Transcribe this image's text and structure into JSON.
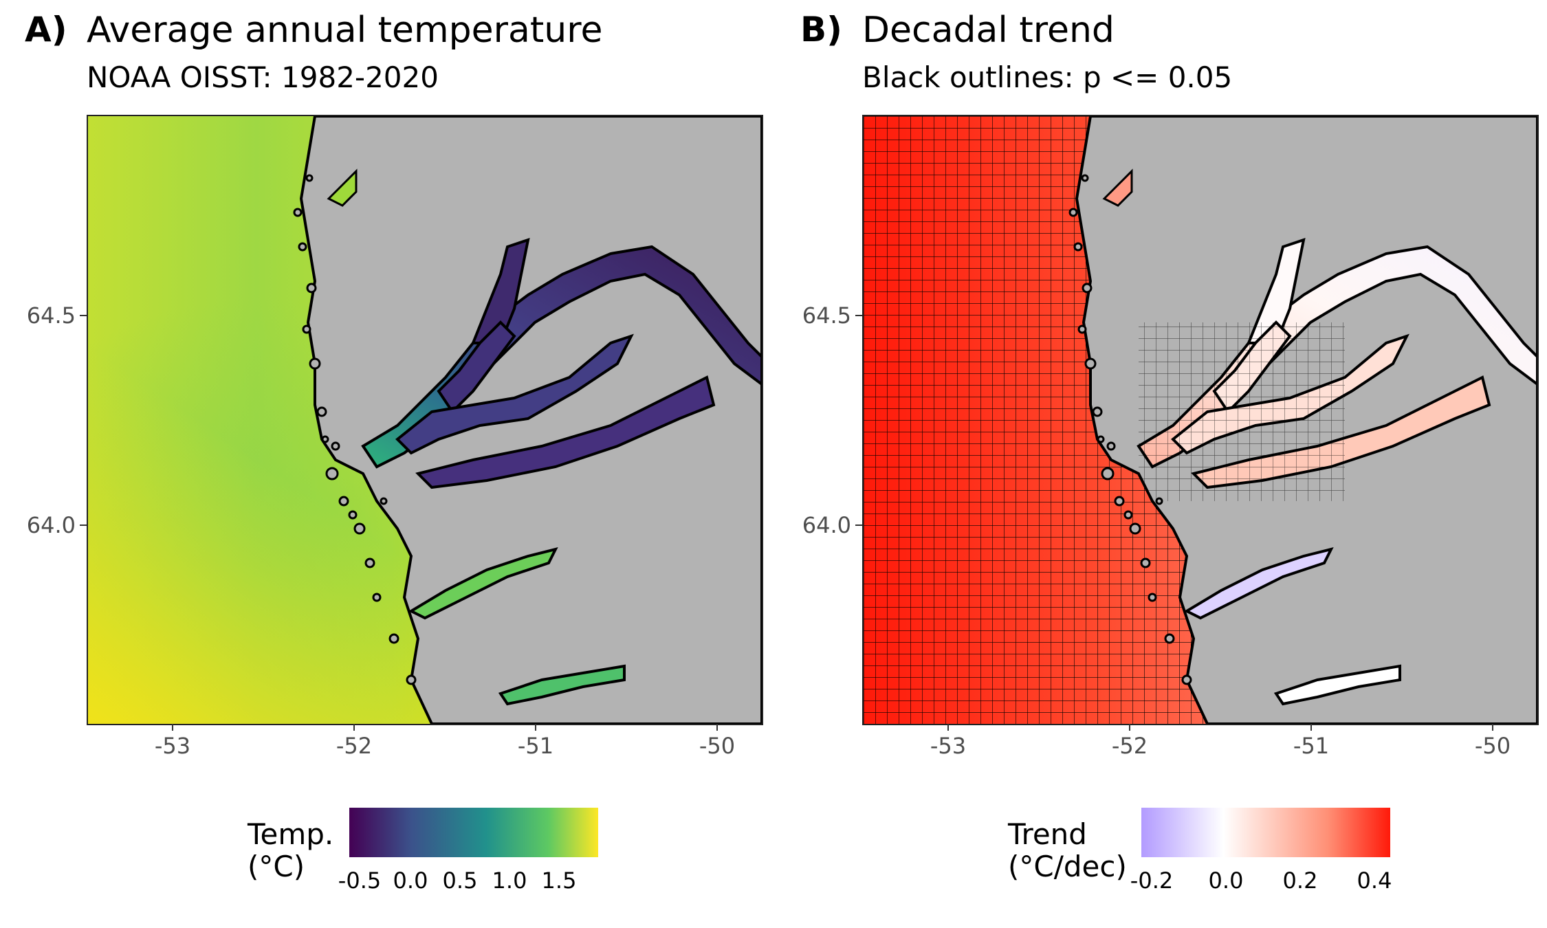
{
  "panels": [
    {
      "letter": "A)",
      "title": "Average annual temperature",
      "subtitle": "NOAA OISST: 1982-2020",
      "legend_title_line1": "Temp.",
      "legend_title_line2": "(°C)",
      "legend_ticks": [
        "-0.5",
        "0.0",
        "0.5",
        "1.0",
        "1.5"
      ],
      "ocean_color": "#b8de29",
      "coast_color": "#a0da39",
      "fjord_inner_color": "#3b1c5a",
      "fjord_mid_color": "#453781",
      "fjord_mouth_color": "#2a9d8f"
    },
    {
      "letter": "B)",
      "title": "Decadal trend",
      "subtitle": "Black outlines: p <= 0.05",
      "legend_title_line1": "Trend",
      "legend_title_line2": "(°C/dec)",
      "legend_ticks": [
        "-0.2",
        "0.0",
        "0.2",
        "0.4"
      ],
      "ocean_color": "#ff2a12",
      "coast_color": "#ff7a60",
      "fjord_inner_color": "#ffffff",
      "fjord_mid_color": "#fce8e2",
      "fjord_mouth_color": "#ffb9a6"
    }
  ],
  "axes": {
    "y_ticks": [
      "64.5",
      "64.0"
    ],
    "x_ticks": [
      "-53",
      "-52",
      "-51",
      "-50"
    ]
  },
  "map_data": {
    "lon_range": [
      -53.5,
      -49.8
    ],
    "lat_range": [
      63.55,
      64.95
    ],
    "land_color": "#b3b3b3"
  }
}
